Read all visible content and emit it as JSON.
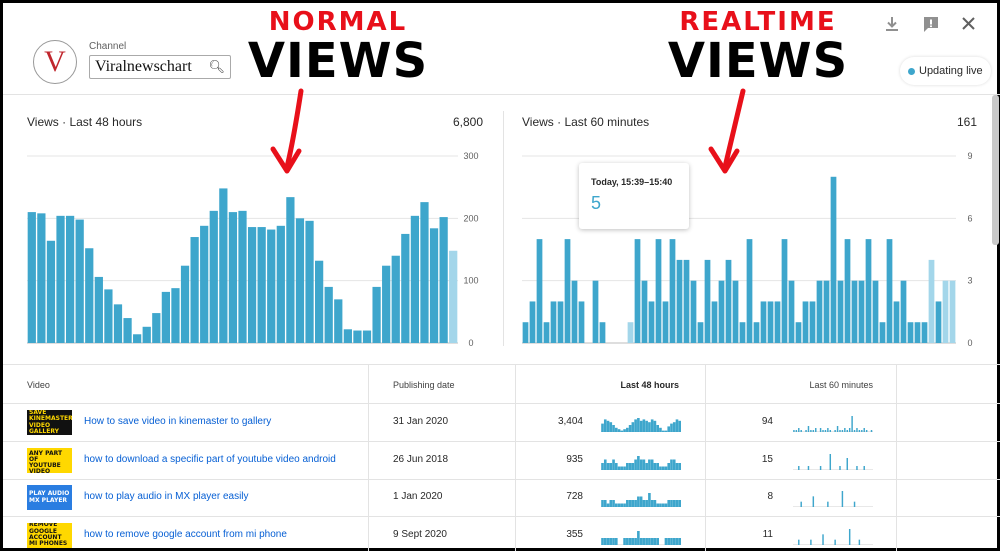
{
  "annotations": {
    "normal_top": "NORMAL",
    "normal_bottom": "VIEWS",
    "realtime_top": "REALTIME",
    "realtime_bottom": "VIEWS"
  },
  "header": {
    "channel_label": "Channel",
    "channel_name": "Viralnewschart",
    "avatar_letter": "V",
    "live_status": "Updating live",
    "icons": [
      "download-icon",
      "feedback-icon",
      "close-icon"
    ]
  },
  "colors": {
    "bar": "#3ea6cc",
    "bar_light": "#a3d6ea",
    "link": "#065fd4",
    "annotation_red": "#e8101a"
  },
  "cards": {
    "left": {
      "title": "Views · Last 48 hours",
      "total": "6,800"
    },
    "right": {
      "title": "Views · Last 60 minutes",
      "total": "161"
    }
  },
  "tooltip": {
    "label": "Today, 15:39–15:40",
    "value": "5"
  },
  "chart_data": [
    {
      "type": "bar",
      "title": "Views · Last 48 hours",
      "ylim": [
        0,
        300
      ],
      "yticks": [
        "300",
        "200",
        "100",
        "0"
      ],
      "values": [
        210,
        208,
        164,
        204,
        204,
        198,
        152,
        106,
        86,
        62,
        40,
        14,
        26,
        48,
        82,
        88,
        124,
        170,
        188,
        212,
        248,
        210,
        212,
        186,
        186,
        182,
        188,
        234,
        200,
        196,
        132,
        90,
        70,
        22,
        20,
        20,
        90,
        124,
        140,
        175,
        204,
        226,
        184,
        202,
        148
      ],
      "highlight_last": true
    },
    {
      "type": "bar",
      "title": "Views · Last 60 minutes",
      "ylim": [
        0,
        9
      ],
      "yticks": [
        "9",
        "6",
        "3",
        "0"
      ],
      "values": [
        1,
        2,
        5,
        1,
        2,
        2,
        5,
        3,
        2,
        0,
        3,
        1,
        0,
        0,
        0,
        1,
        5,
        3,
        2,
        5,
        2,
        5,
        4,
        4,
        3,
        1,
        4,
        2,
        3,
        4,
        3,
        1,
        5,
        1,
        2,
        2,
        2,
        5,
        3,
        1,
        2,
        2,
        3,
        3,
        8,
        3,
        5,
        3,
        3,
        5,
        3,
        1,
        5,
        2,
        3,
        1,
        1,
        1,
        4,
        2,
        3,
        3
      ],
      "light_indices": [
        15,
        58,
        60,
        61
      ]
    }
  ],
  "table": {
    "headers": {
      "video": "Video",
      "date": "Publishing date",
      "h48": "Last 48 hours",
      "m60": "Last 60 minutes"
    },
    "rows": [
      {
        "title": "How to save video in kinemaster to gallery",
        "date": "31 Jan 2020",
        "views48": "3,404",
        "views60": "94",
        "thumb": {
          "bg": "#111111",
          "fg": "#ffd800",
          "text": "SAVE KINEMASTER VIDEO GALLERY"
        },
        "spark48": [
          6,
          9,
          8,
          7,
          5,
          3,
          2,
          1,
          2,
          3,
          5,
          7,
          9,
          10,
          8,
          9,
          8,
          7,
          9,
          8,
          5,
          3,
          1,
          1,
          4,
          6,
          7,
          9,
          8
        ],
        "spark60": [
          1,
          1,
          2,
          1,
          0,
          1,
          3,
          1,
          1,
          2,
          0,
          2,
          1,
          1,
          2,
          1,
          0,
          1,
          3,
          1,
          1,
          2,
          1,
          2,
          8,
          1,
          2,
          1,
          1,
          2,
          1,
          0,
          1
        ]
      },
      {
        "title": "how to download a specific part of youtube video android",
        "date": "26 Jun 2018",
        "views48": "935",
        "views60": "15",
        "thumb": {
          "bg": "#ffd800",
          "fg": "#111111",
          "text": "DOWNLOAD ANY PART OF YOUTUBE VIDEO"
        },
        "spark48": [
          2,
          3,
          2,
          2,
          3,
          2,
          1,
          1,
          1,
          2,
          2,
          2,
          3,
          4,
          3,
          3,
          2,
          3,
          3,
          2,
          2,
          1,
          1,
          1,
          2,
          3,
          3,
          2,
          2
        ],
        "spark60": [
          0,
          0,
          1,
          0,
          0,
          0,
          1,
          0,
          0,
          0,
          0,
          1,
          0,
          0,
          0,
          4,
          0,
          0,
          0,
          1,
          0,
          0,
          3,
          0,
          0,
          0,
          1,
          0,
          0,
          1,
          0,
          0,
          0
        ]
      },
      {
        "title": "how to play audio in MX player easily",
        "date": "1 Jan 2020",
        "views48": "728",
        "views60": "8",
        "thumb": {
          "bg": "#2a7de1",
          "fg": "#ffffff",
          "text": "PLAY AUDIO MX PLAYER"
        },
        "spark48": [
          2,
          2,
          1,
          2,
          2,
          1,
          1,
          1,
          1,
          2,
          2,
          2,
          2,
          3,
          3,
          2,
          2,
          4,
          2,
          2,
          1,
          1,
          1,
          1,
          2,
          2,
          2,
          2,
          2
        ],
        "spark60": [
          0,
          0,
          0,
          1,
          0,
          0,
          0,
          0,
          2,
          0,
          0,
          0,
          0,
          0,
          1,
          0,
          0,
          0,
          0,
          0,
          3,
          0,
          0,
          0,
          0,
          1,
          0,
          0,
          0,
          0,
          0,
          0,
          0
        ]
      },
      {
        "title": "how to remove google account from mi phone",
        "date": "9 Sept 2020",
        "views48": "355",
        "views60": "11",
        "thumb": {
          "bg": "#ffd800",
          "fg": "#111111",
          "text": "REMOVE GOOGLE ACCOUNT MI PHONES"
        },
        "spark48": [
          1,
          1,
          1,
          1,
          1,
          1,
          0,
          0,
          1,
          1,
          1,
          1,
          1,
          2,
          1,
          1,
          1,
          1,
          1,
          1,
          1,
          0,
          0,
          1,
          1,
          1,
          1,
          1,
          1
        ],
        "spark60": [
          0,
          0,
          1,
          0,
          0,
          0,
          0,
          1,
          0,
          0,
          0,
          0,
          2,
          0,
          0,
          0,
          0,
          1,
          0,
          0,
          0,
          0,
          0,
          3,
          0,
          0,
          0,
          1,
          0,
          0,
          0,
          0,
          0
        ]
      }
    ]
  }
}
